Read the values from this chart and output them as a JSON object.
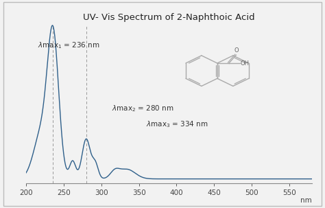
{
  "title": "UV- Vis Spectrum of 2-Naphthoic Acid",
  "xlabel": "nm",
  "xlim": [
    200,
    580
  ],
  "ylim": [
    -0.02,
    1.05
  ],
  "xticks": [
    200,
    250,
    300,
    350,
    400,
    450,
    500,
    550
  ],
  "peak1_wl": 236,
  "peak2_wl": 280,
  "peak3_wl": 334,
  "line_color": "#2e5f8a",
  "dashed_color": "#999999",
  "mol_color": "#aaaaaa",
  "background_color": "#f2f2f2",
  "border_color": "#bbbbbb",
  "title_fontsize": 9.5,
  "annotation_fontsize": 7.5,
  "tick_fontsize": 7.5
}
